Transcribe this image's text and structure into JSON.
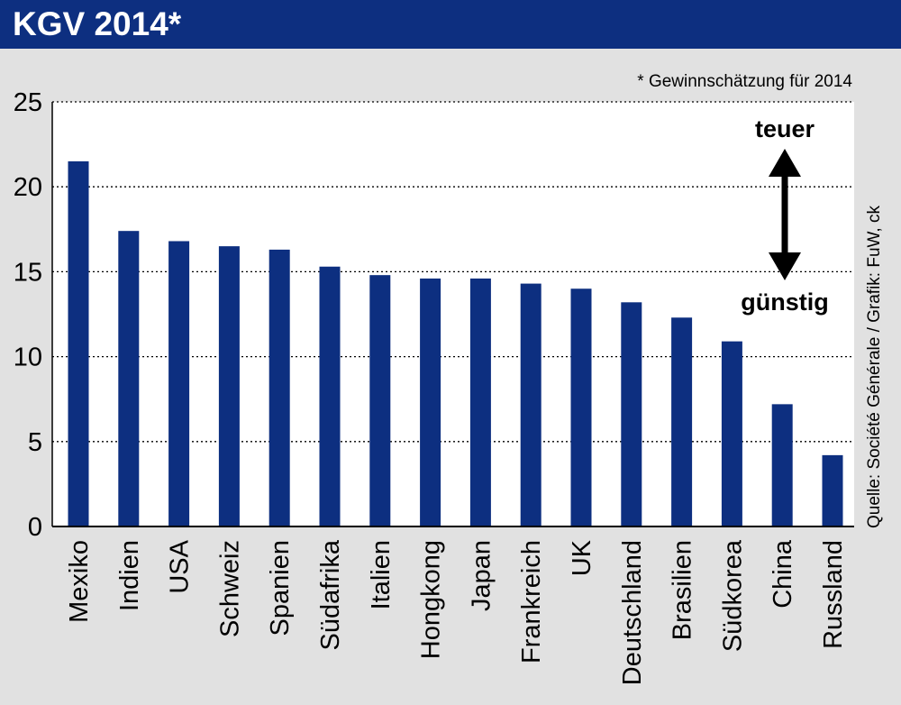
{
  "header": {
    "title": "KGV 2014*"
  },
  "chart_data": {
    "type": "bar",
    "title": "KGV 2014*",
    "footnote": "* Gewinnschätzung für 2014",
    "source": "Quelle: Société Générale / Grafik: FuW, ck",
    "categories": [
      "Mexiko",
      "Indien",
      "USA",
      "Schweiz",
      "Spanien",
      "Südafrika",
      "Italien",
      "Hongkong",
      "Japan",
      "Frankreich",
      "UK",
      "Deutschland",
      "Brasilien",
      "Südkorea",
      "China",
      "Russland"
    ],
    "values": [
      21.5,
      17.4,
      16.8,
      16.5,
      16.3,
      15.3,
      14.8,
      14.6,
      14.6,
      14.3,
      14.0,
      13.2,
      12.3,
      10.9,
      7.2,
      4.2
    ],
    "yticks": [
      "0",
      "5",
      "10",
      "15",
      "20",
      "25"
    ],
    "ylim": [
      0,
      25
    ],
    "xlabel": "",
    "ylabel": "",
    "grid": true,
    "annotation": {
      "top": "teuer",
      "bottom": "günstig"
    },
    "colors": {
      "bar": "#0d2f80",
      "header": "#0d2f80",
      "plot_bg": "#ffffff",
      "page_bg": "#e1e1e1"
    }
  }
}
